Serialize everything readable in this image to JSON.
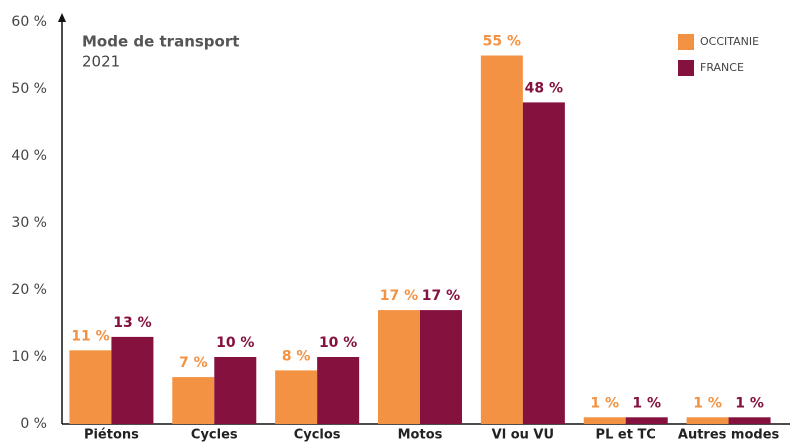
{
  "chart_data": {
    "type": "bar",
    "title": "Mode de transport",
    "subtitle": "2021",
    "categories": [
      "Piétons",
      "Cycles",
      "Cyclos",
      "Motos",
      "Vl ou VU",
      "PL et TC",
      "Autres modes"
    ],
    "series": [
      {
        "name": "OCCITANIE",
        "color": "#f39243",
        "values": [
          11,
          7,
          8,
          17,
          55,
          1,
          1
        ],
        "value_labels": [
          "11 %",
          "7 %",
          "8 %",
          "17 %",
          "55 %",
          "1 %",
          "1 %"
        ]
      },
      {
        "name": "FRANCE",
        "color": "#85113f",
        "values": [
          13,
          10,
          10,
          17,
          48,
          1,
          1
        ],
        "value_labels": [
          "13 %",
          "10 %",
          "10 %",
          "17 %",
          "48 %",
          "1 %",
          "1 %"
        ]
      }
    ],
    "ylim": [
      0,
      60
    ],
    "yticks": [
      {
        "value": 0,
        "label": "0 %"
      },
      {
        "value": 10,
        "label": "10 %"
      },
      {
        "value": 20,
        "label": "20 %"
      },
      {
        "value": 30,
        "label": "30 %"
      },
      {
        "value": 40,
        "label": "40 %"
      },
      {
        "value": 50,
        "label": "50 %"
      },
      {
        "value": 60,
        "label": "60 %"
      }
    ],
    "legend": "top-right"
  }
}
